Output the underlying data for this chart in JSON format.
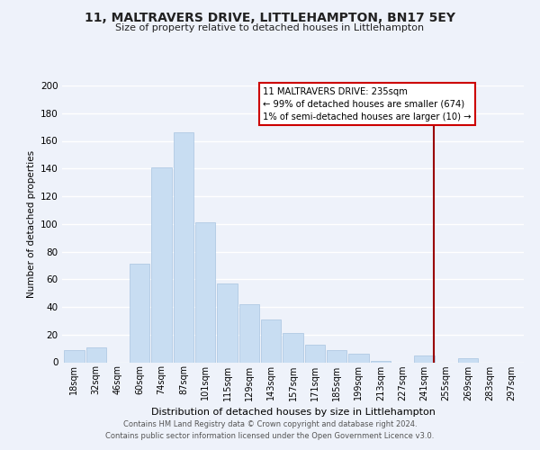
{
  "title": "11, MALTRAVERS DRIVE, LITTLEHAMPTON, BN17 5EY",
  "subtitle": "Size of property relative to detached houses in Littlehampton",
  "xlabel": "Distribution of detached houses by size in Littlehampton",
  "ylabel": "Number of detached properties",
  "bar_labels": [
    "18sqm",
    "32sqm",
    "46sqm",
    "60sqm",
    "74sqm",
    "87sqm",
    "101sqm",
    "115sqm",
    "129sqm",
    "143sqm",
    "157sqm",
    "171sqm",
    "185sqm",
    "199sqm",
    "213sqm",
    "227sqm",
    "241sqm",
    "255sqm",
    "269sqm",
    "283sqm",
    "297sqm"
  ],
  "bar_values": [
    9,
    11,
    0,
    71,
    141,
    166,
    101,
    57,
    42,
    31,
    21,
    13,
    9,
    6,
    1,
    0,
    5,
    0,
    3,
    0,
    0
  ],
  "bar_color": "#c8ddf2",
  "bar_edge_color": "#a8c4e0",
  "background_color": "#eef2fa",
  "plot_bg_color": "#eef2fa",
  "grid_color": "#ffffff",
  "ylim": [
    0,
    200
  ],
  "yticks": [
    0,
    20,
    40,
    60,
    80,
    100,
    120,
    140,
    160,
    180,
    200
  ],
  "vline_x_idx": 16.45,
  "vline_color": "#990000",
  "annotation_title": "11 MALTRAVERS DRIVE: 235sqm",
  "annotation_line1": "← 99% of detached houses are smaller (674)",
  "annotation_line2": "1% of semi-detached houses are larger (10) →",
  "annotation_box_facecolor": "#ffffff",
  "annotation_box_edgecolor": "#cc0000",
  "footer1": "Contains HM Land Registry data © Crown copyright and database right 2024.",
  "footer2": "Contains public sector information licensed under the Open Government Licence v3.0."
}
